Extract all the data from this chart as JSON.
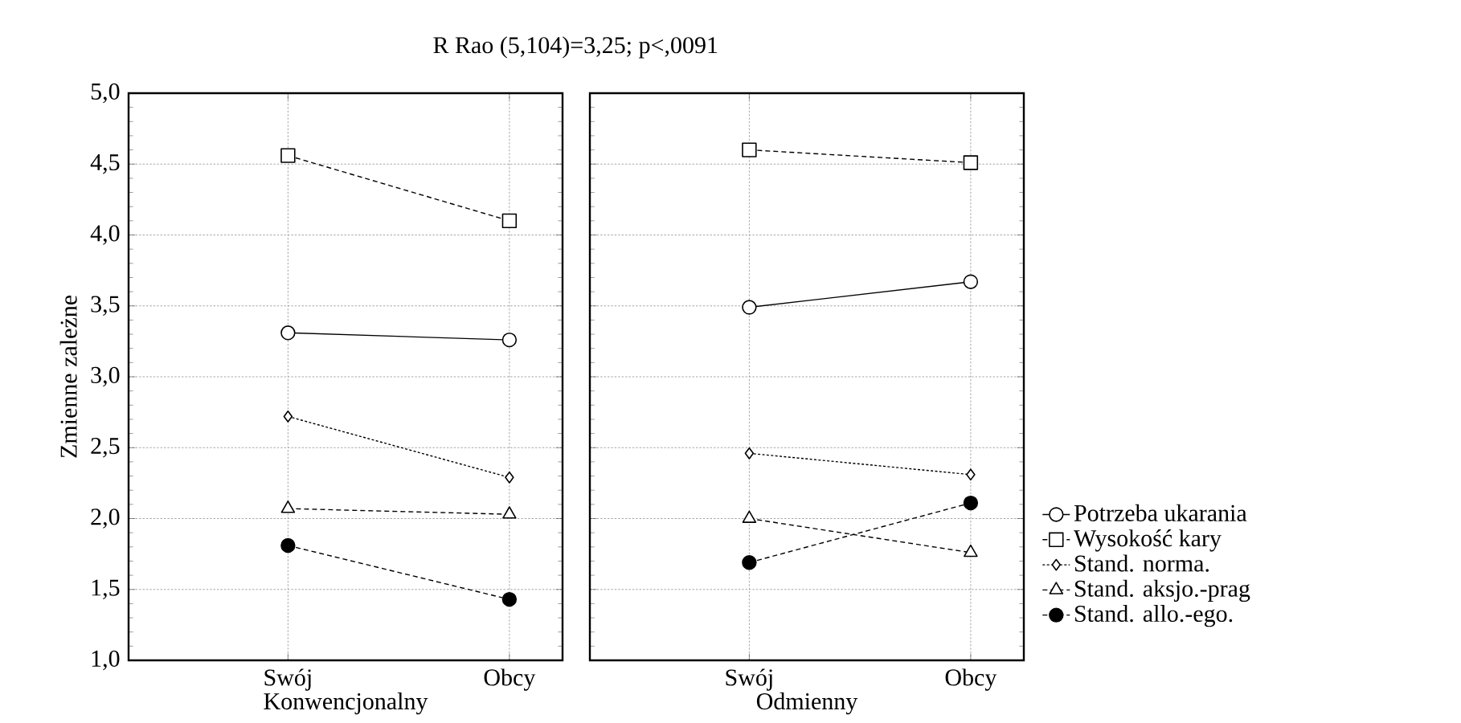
{
  "chart_data": [
    {
      "type": "line",
      "title": "R Rao (5,104)=3,25; p<,0091",
      "xlabel": "Konwencjonalny",
      "ylabel": "Zmienne zależne",
      "categories": [
        "Swój",
        "Obcy"
      ],
      "ylim": [
        1,
        5
      ],
      "yticks": [
        {
          "value": 1,
          "label": "1,0"
        },
        {
          "value": 1.5,
          "label": "1,5"
        },
        {
          "value": 2,
          "label": "2,0"
        },
        {
          "value": 2.5,
          "label": "2,5"
        },
        {
          "value": 3,
          "label": "3,0"
        },
        {
          "value": 3.5,
          "label": "3,5"
        },
        {
          "value": 4,
          "label": "4,0"
        },
        {
          "value": 4.5,
          "label": "4,5"
        },
        {
          "value": 5,
          "label": "5,0"
        }
      ],
      "grid": true,
      "legend": false,
      "series": [
        {
          "color": "#000000",
          "marker": "circle",
          "line_style": "solid",
          "values": [
            3.31,
            3.26
          ]
        },
        {
          "color": "#000000",
          "marker": "square",
          "line_style": "dashed",
          "values": [
            4.56,
            4.1
          ]
        },
        {
          "color": "#000000",
          "marker": "diamond",
          "line_style": "dotted",
          "values": [
            2.72,
            2.29
          ]
        },
        {
          "color": "#000000",
          "marker": "triangle",
          "line_style": "dashed",
          "values": [
            2.07,
            2.03
          ]
        },
        {
          "color": "#000000",
          "marker": "circle",
          "line_style": "dashed",
          "values": [
            1.81,
            1.43
          ]
        }
      ]
    },
    {
      "type": "line",
      "xlabel": "Odmienny",
      "categories": [
        "Swój",
        "Obcy"
      ],
      "ylim": [
        1,
        5
      ],
      "tick_labels": "x",
      "grid": true,
      "legend": "right",
      "series": [
        {
          "name": "Potrzeba ukarania",
          "color": "#000000",
          "marker": "circle",
          "line_style": "solid",
          "values": [
            3.49,
            3.67
          ]
        },
        {
          "name": "Wysokość kary",
          "color": "#000000",
          "marker": "square",
          "line_style": "dashed",
          "values": [
            4.6,
            4.51
          ]
        },
        {
          "name": "Stand. norma.",
          "color": "#000000",
          "marker": "diamond",
          "line_style": "dotted",
          "values": [
            2.46,
            2.31
          ]
        },
        {
          "name": "Stand. aksjo.-prag",
          "color": "#000000",
          "marker": "triangle",
          "line_style": "dashed",
          "values": [
            2.0,
            1.76
          ]
        },
        {
          "name": "Stand. allo.-ego.",
          "color": "#000000",
          "marker": "circle",
          "line_style": "dashed",
          "values": [
            1.69,
            2.11
          ]
        }
      ]
    }
  ]
}
